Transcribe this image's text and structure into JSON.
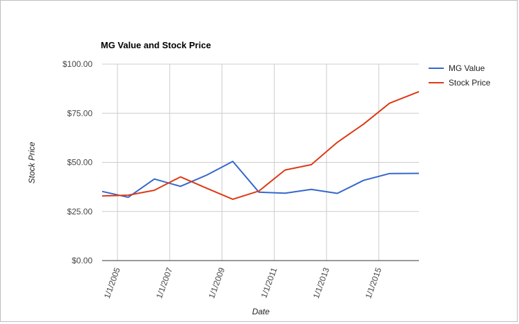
{
  "chart_data": {
    "type": "line",
    "title": "MG Value and Stock Price",
    "xlabel": "Date",
    "ylabel": "Stock Price",
    "ylim": [
      0,
      100
    ],
    "y_ticks": [
      {
        "value": 0,
        "label": "$0.00"
      },
      {
        "value": 25,
        "label": "$25.00"
      },
      {
        "value": 50,
        "label": "$50.00"
      },
      {
        "value": 75,
        "label": "$75.00"
      },
      {
        "value": 100,
        "label": "$100.00"
      }
    ],
    "xlim": [
      "2004-06-01",
      "2016-07-15"
    ],
    "x_ticks": [
      {
        "value": "2005-01-01",
        "label": "1/1/2005"
      },
      {
        "value": "2007-01-01",
        "label": "1/1/2007"
      },
      {
        "value": "2009-01-01",
        "label": "1/1/2009"
      },
      {
        "value": "2011-01-01",
        "label": "1/1/2011"
      },
      {
        "value": "2013-01-01",
        "label": "1/1/2013"
      },
      {
        "value": "2015-01-01",
        "label": "1/1/2015"
      }
    ],
    "grid": true,
    "legend": "right",
    "series": [
      {
        "name": "MG Value",
        "color": "#3366cc",
        "points": [
          {
            "x": "2004-06-01",
            "y": 35.2
          },
          {
            "x": "2005-06-01",
            "y": 32.2
          },
          {
            "x": "2006-06-01",
            "y": 41.5
          },
          {
            "x": "2007-06-01",
            "y": 37.8
          },
          {
            "x": "2008-06-01",
            "y": 43.5
          },
          {
            "x": "2009-06-01",
            "y": 50.5
          },
          {
            "x": "2010-06-01",
            "y": 34.8
          },
          {
            "x": "2011-06-01",
            "y": 34.3
          },
          {
            "x": "2012-06-01",
            "y": 36.2
          },
          {
            "x": "2013-06-01",
            "y": 34.2
          },
          {
            "x": "2014-06-01",
            "y": 40.8
          },
          {
            "x": "2015-06-01",
            "y": 44.3
          },
          {
            "x": "2016-07-15",
            "y": 44.4
          }
        ]
      },
      {
        "name": "Stock Price",
        "color": "#dc3912",
        "points": [
          {
            "x": "2004-06-01",
            "y": 32.9
          },
          {
            "x": "2005-06-01",
            "y": 33.3
          },
          {
            "x": "2006-06-01",
            "y": 35.8
          },
          {
            "x": "2007-06-01",
            "y": 42.6
          },
          {
            "x": "2008-06-01",
            "y": 36.8
          },
          {
            "x": "2009-06-01",
            "y": 31.2
          },
          {
            "x": "2010-06-01",
            "y": 35.4
          },
          {
            "x": "2011-06-01",
            "y": 46.1
          },
          {
            "x": "2012-06-01",
            "y": 48.8
          },
          {
            "x": "2013-06-01",
            "y": 60.2
          },
          {
            "x": "2014-06-01",
            "y": 69.4
          },
          {
            "x": "2015-06-01",
            "y": 80.1
          },
          {
            "x": "2016-07-15",
            "y": 86.0
          }
        ]
      }
    ]
  }
}
